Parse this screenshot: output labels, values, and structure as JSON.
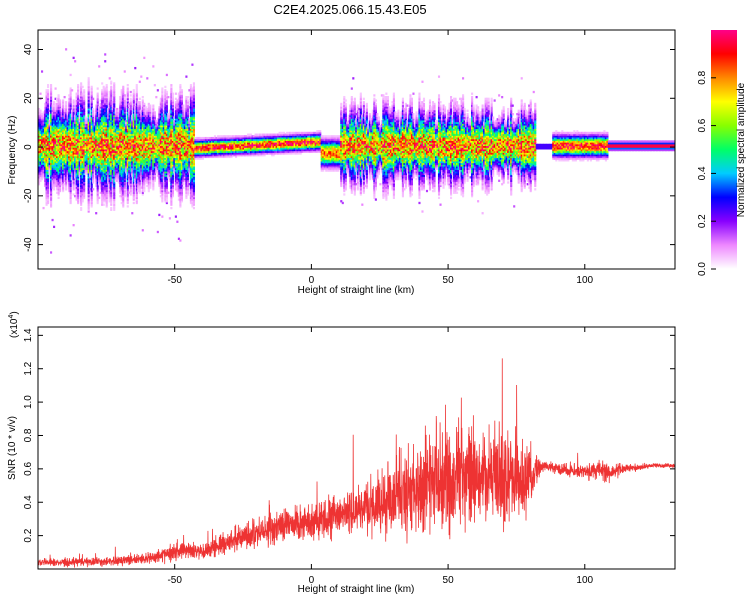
{
  "figure": {
    "title": "C2E4.2025.066.15.43.E05"
  },
  "chart_data": [
    {
      "type": "heatmap",
      "xlabel": "Height of straight line (km)",
      "ylabel": "Frequency (Hz)",
      "xlim": [
        -100,
        133
      ],
      "ylim": [
        -50,
        48
      ],
      "xticks": [
        -50,
        0,
        50,
        100
      ],
      "yticks": [
        -40,
        -20,
        0,
        20,
        40
      ],
      "colorbar": {
        "label": "Normalized spectral amplitude",
        "range": [
          0,
          1
        ],
        "ticks": [
          "0.0",
          "0.2",
          "0.4",
          "0.6",
          "0.8"
        ],
        "colors": [
          "#ffffff",
          "#ee88ff",
          "#8800ff",
          "#0000ff",
          "#00ccff",
          "#00ff66",
          "#88ff00",
          "#ffff00",
          "#ff8800",
          "#ff0000",
          "#ff0088"
        ]
      },
      "segments": [
        {
          "x": [
            -100,
            -43
          ],
          "pattern": "broadband",
          "spread_hz": 10,
          "outlier_hz": 45
        },
        {
          "x": [
            -43,
            3
          ],
          "pattern": "narrow",
          "spread_hz": 3,
          "slope_hz_per_km": 0.06
        },
        {
          "x": [
            3,
            10
          ],
          "pattern": "dip",
          "spread_hz": 4,
          "center_hz": -3
        },
        {
          "x": [
            10,
            82
          ],
          "pattern": "broadband",
          "spread_hz": 8,
          "outlier_hz": 30
        },
        {
          "x": [
            82,
            88
          ],
          "pattern": "gap",
          "spread_hz": 1
        },
        {
          "x": [
            88,
            108
          ],
          "pattern": "narrow",
          "spread_hz": 4,
          "slope_hz_per_km": 0
        },
        {
          "x": [
            108,
            133
          ],
          "pattern": "tone",
          "spread_hz": 1.5,
          "center_hz": 0
        }
      ]
    },
    {
      "type": "line",
      "ylabel": "SNR (10 * v/v)",
      "yscale_label": "(x10",
      "yscale_exp": "4",
      "yscale_close": ")",
      "xlabel": "Height of straight line (km)",
      "xlim": [
        -100,
        133
      ],
      "ylim": [
        0,
        1.45
      ],
      "xticks": [
        -50,
        0,
        50,
        100
      ],
      "yticks": [
        0.2,
        0.4,
        0.6,
        0.8,
        1.0,
        1.2,
        1.4
      ],
      "series": [
        {
          "color": "#ee3333",
          "envelope_x": [
            -100,
            -80,
            -60,
            -50,
            -45,
            -40,
            -30,
            -20,
            -10,
            0,
            10,
            20,
            30,
            40,
            50,
            60,
            70,
            80,
            84,
            90,
            100,
            105,
            108,
            115,
            125,
            133
          ],
          "envelope_mean": [
            0.04,
            0.04,
            0.06,
            0.1,
            0.12,
            0.1,
            0.16,
            0.22,
            0.26,
            0.28,
            0.32,
            0.36,
            0.42,
            0.5,
            0.52,
            0.56,
            0.56,
            0.52,
            0.62,
            0.6,
            0.58,
            0.6,
            0.58,
            0.6,
            0.62,
            0.62
          ],
          "envelope_spread": [
            0.03,
            0.04,
            0.05,
            0.08,
            0.07,
            0.07,
            0.1,
            0.12,
            0.14,
            0.15,
            0.18,
            0.22,
            0.32,
            0.4,
            0.42,
            0.45,
            0.38,
            0.3,
            0.05,
            0.05,
            0.06,
            0.09,
            0.1,
            0.04,
            0.02,
            0.02
          ]
        }
      ]
    }
  ]
}
